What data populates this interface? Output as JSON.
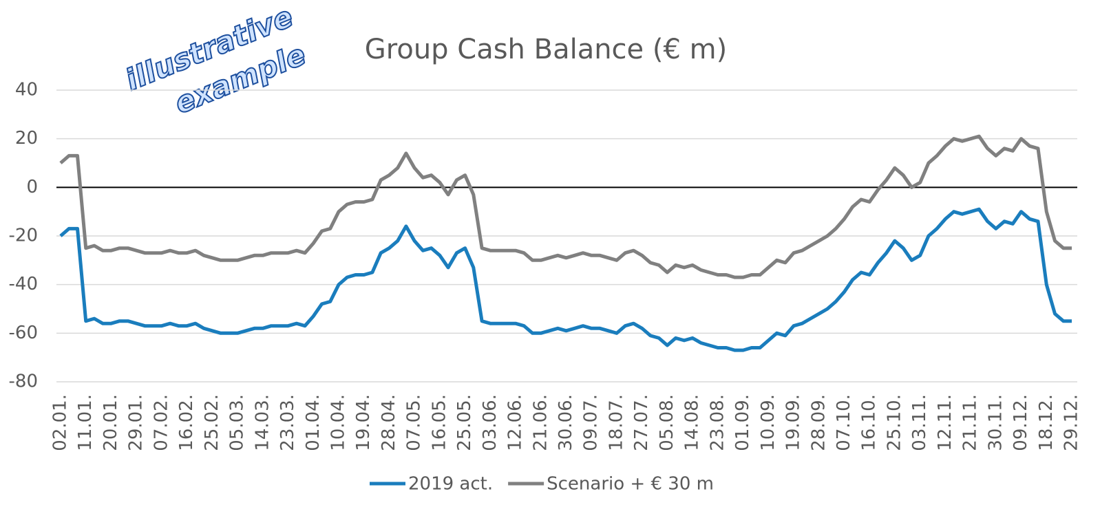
{
  "chart_data": {
    "type": "line",
    "title": "Group Cash Balance (€ m)",
    "annotations": [
      "illustrative",
      "example"
    ],
    "categories": [
      "02.01.",
      null,
      null,
      "11.01.",
      null,
      null,
      "20.01.",
      null,
      null,
      "29.01.",
      null,
      null,
      "07.02.",
      null,
      null,
      "16.02.",
      null,
      null,
      "25.02.",
      null,
      null,
      "05.03.",
      null,
      null,
      "14.03.",
      null,
      null,
      "23.03.",
      null,
      null,
      "01.04.",
      null,
      null,
      "10.04.",
      null,
      null,
      "19.04.",
      null,
      null,
      "28.04.",
      null,
      null,
      "07.05.",
      null,
      null,
      "16.05.",
      null,
      null,
      "25.05.",
      null,
      null,
      "03.06.",
      null,
      null,
      "12.06.",
      null,
      null,
      "21.06.",
      null,
      null,
      "30.06.",
      null,
      null,
      "09.07.",
      null,
      null,
      "18.07.",
      null,
      null,
      "27.07.",
      null,
      null,
      "05.08.",
      null,
      null,
      "14.08.",
      null,
      null,
      "23.08.",
      null,
      null,
      "01.09.",
      null,
      null,
      "10.09.",
      null,
      null,
      "19.09.",
      null,
      null,
      "28.09.",
      null,
      null,
      "07.10.",
      null,
      null,
      "16.10.",
      null,
      null,
      "25.10.",
      null,
      null,
      "03.11.",
      null,
      null,
      "12.11.",
      null,
      null,
      "21.11.",
      null,
      null,
      "30.11.",
      null,
      null,
      "09.12.",
      null,
      null,
      "18.12.",
      null,
      null,
      "29.12."
    ],
    "series": [
      {
        "name": "2019 act.",
        "color": "#1a7dbd",
        "values": [
          -20,
          -17,
          -17,
          -55,
          -54,
          -56,
          -56,
          -55,
          -55,
          -56,
          -57,
          -57,
          -57,
          -56,
          -57,
          -57,
          -56,
          -58,
          -59,
          -60,
          -60,
          -60,
          -59,
          -58,
          -58,
          -57,
          -57,
          -57,
          -56,
          -57,
          -53,
          -48,
          -47,
          -40,
          -37,
          -36,
          -36,
          -35,
          -27,
          -25,
          -22,
          -16,
          -22,
          -26,
          -25,
          -28,
          -33,
          -27,
          -25,
          -33,
          -55,
          -56,
          -56,
          -56,
          -56,
          -57,
          -60,
          -60,
          -59,
          -58,
          -59,
          -58,
          -57,
          -58,
          -58,
          -59,
          -60,
          -57,
          -56,
          -58,
          -61,
          -62,
          -65,
          -62,
          -63,
          -62,
          -64,
          -65,
          -66,
          -66,
          -67,
          -67,
          -66,
          -66,
          -63,
          -60,
          -61,
          -57,
          -56,
          -54,
          -52,
          -50,
          -47,
          -43,
          -38,
          -35,
          -36,
          -31,
          -27,
          -22,
          -25,
          -30,
          -28,
          -20,
          -17,
          -13,
          -10,
          -11,
          -10,
          -9,
          -14,
          -17,
          -14,
          -15,
          -10,
          -13,
          -14,
          -40,
          -52,
          -55,
          -55
        ]
      },
      {
        "name": "Scenario + € 30 m",
        "color": "#808080",
        "values": [
          10,
          13,
          13,
          -25,
          -24,
          -26,
          -26,
          -25,
          -25,
          -26,
          -27,
          -27,
          -27,
          -26,
          -27,
          -27,
          -26,
          -28,
          -29,
          -30,
          -30,
          -30,
          -29,
          -28,
          -28,
          -27,
          -27,
          -27,
          -26,
          -27,
          -23,
          -18,
          -17,
          -10,
          -7,
          -6,
          -6,
          -5,
          3,
          5,
          8,
          14,
          8,
          4,
          5,
          2,
          -3,
          3,
          5,
          -3,
          -25,
          -26,
          -26,
          -26,
          -26,
          -27,
          -30,
          -30,
          -29,
          -28,
          -29,
          -28,
          -27,
          -28,
          -28,
          -29,
          -30,
          -27,
          -26,
          -28,
          -31,
          -32,
          -35,
          -32,
          -33,
          -32,
          -34,
          -35,
          -36,
          -36,
          -37,
          -37,
          -36,
          -36,
          -33,
          -30,
          -31,
          -27,
          -26,
          -24,
          -22,
          -20,
          -17,
          -13,
          -8,
          -5,
          -6,
          -1,
          3,
          8,
          5,
          0,
          2,
          10,
          13,
          17,
          20,
          19,
          20,
          21,
          16,
          13,
          16,
          15,
          20,
          17,
          16,
          -10,
          -22,
          -25,
          -25
        ]
      }
    ],
    "ylim": [
      -80,
      40
    ],
    "yticks": [
      -80,
      -60,
      -40,
      -20,
      0,
      20,
      40
    ],
    "grid": true,
    "legend": "bottom"
  }
}
